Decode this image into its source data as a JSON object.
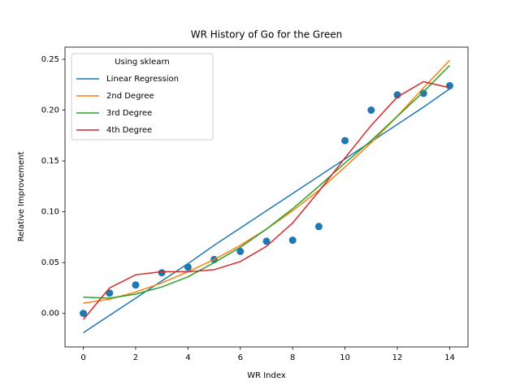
{
  "chart_data": {
    "type": "line",
    "title": "WR History of Go for the Green",
    "xlabel": "WR Index",
    "ylabel": "Relative Improvement",
    "x": [
      0,
      1,
      2,
      3,
      4,
      5,
      6,
      7,
      8,
      9,
      10,
      11,
      12,
      13,
      14
    ],
    "scatter": {
      "color": "#1f77b4",
      "values": [
        0.0,
        0.02,
        0.028,
        0.04,
        0.0455,
        0.053,
        0.061,
        0.071,
        0.072,
        0.0855,
        0.17,
        0.2,
        0.215,
        0.2165,
        0.224
      ]
    },
    "series": [
      {
        "name": "Linear Regression",
        "color": "#1f77b4",
        "values": [
          -0.019,
          -0.002,
          0.015,
          0.032,
          0.049,
          0.067,
          0.084,
          0.101,
          0.118,
          0.135,
          0.152,
          0.169,
          0.186,
          0.203,
          0.221
        ]
      },
      {
        "name": "2nd Degree",
        "color": "#ff7f0e",
        "values": [
          0.01,
          0.014,
          0.021,
          0.03,
          0.041,
          0.053,
          0.067,
          0.083,
          0.101,
          0.121,
          0.144,
          0.168,
          0.194,
          0.222,
          0.249
        ]
      },
      {
        "name": "3rd Degree",
        "color": "#2ca02c",
        "values": [
          0.016,
          0.015,
          0.019,
          0.026,
          0.036,
          0.05,
          0.065,
          0.083,
          0.103,
          0.125,
          0.148,
          0.17,
          0.194,
          0.218,
          0.244
        ]
      },
      {
        "name": "4th Degree",
        "color": "#d62728",
        "values": [
          -0.006,
          0.025,
          0.038,
          0.041,
          0.041,
          0.043,
          0.051,
          0.066,
          0.089,
          0.12,
          0.153,
          0.185,
          0.213,
          0.228,
          0.222
        ]
      }
    ],
    "legend_title": "Using sklearn",
    "legend": "upper left",
    "xlim": [
      -0.7,
      14.7
    ],
    "xticks": [
      0,
      2,
      4,
      6,
      8,
      10,
      12,
      14
    ],
    "ylim": [
      -0.033,
      0.262
    ],
    "yticks": [
      {
        "value": 0,
        "label": "0.00"
      },
      0.05,
      {
        "value": 0.1,
        "label": "0.10"
      },
      0.15,
      {
        "value": 0.2,
        "label": "0.20"
      },
      0.25
    ],
    "grid": false
  }
}
